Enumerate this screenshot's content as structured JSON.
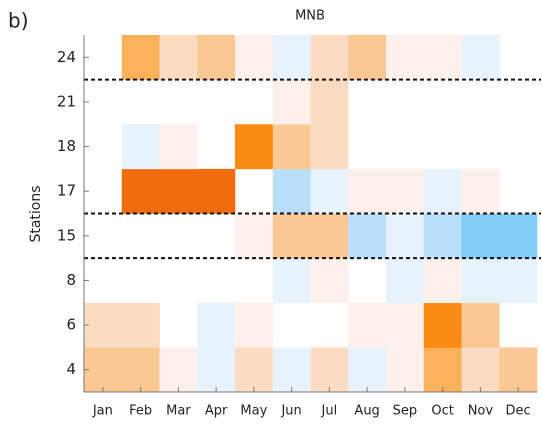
{
  "chart_data": {
    "type": "heatmap",
    "panel_label": "b)",
    "title": "MNB",
    "y_label": "Stations",
    "x_categories": [
      "Jan",
      "Feb",
      "Mar",
      "Apr",
      "May",
      "Jun",
      "Jul",
      "Aug",
      "Sep",
      "Oct",
      "Nov",
      "Dec"
    ],
    "y_categories": [
      "4",
      "6",
      "8",
      "15",
      "17",
      "18",
      "21",
      "24"
    ],
    "values": [
      [
        3,
        3,
        1,
        -1,
        2,
        -1,
        2,
        -1,
        1,
        4,
        2,
        3
      ],
      [
        2,
        2,
        null,
        -1,
        1,
        null,
        null,
        1,
        1,
        5,
        3,
        null
      ],
      [
        null,
        null,
        null,
        null,
        null,
        -1,
        1,
        null,
        -1,
        1,
        -1,
        -1
      ],
      [
        null,
        null,
        null,
        null,
        1,
        3,
        3,
        -2,
        -1,
        -2,
        -3,
        -3
      ],
      [
        null,
        6,
        6,
        6,
        null,
        -2,
        -1,
        1,
        1,
        -1,
        1,
        null
      ],
      [
        null,
        -1,
        1,
        null,
        5,
        3,
        2,
        null,
        null,
        null,
        null,
        null
      ],
      [
        null,
        null,
        null,
        null,
        null,
        1,
        2,
        null,
        null,
        null,
        null,
        null
      ],
      [
        null,
        4,
        2,
        3,
        1,
        -1,
        2,
        3,
        1,
        1,
        -1,
        null
      ]
    ],
    "colorscale": {
      "values": [
        -3,
        -2,
        -1,
        1,
        2,
        3,
        4,
        5,
        6
      ],
      "colors": [
        "#82ccf9",
        "#bae0f9",
        "#e6f2fc",
        "#fdf0ea",
        "#fbdbc2",
        "#fbc792",
        "#fbb05a",
        "#f98a12",
        "#f06c0f"
      ]
    }
  }
}
